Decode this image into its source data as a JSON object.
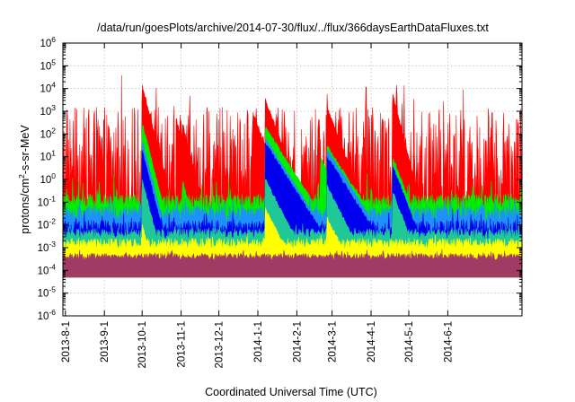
{
  "chart_data": {
    "type": "area",
    "title": "/data/run/goesPlots/archive/2014-07-30/flux/../flux/366daysEarthDataFluxes.txt",
    "xlabel": "Coordinated Universal Time (UTC)",
    "ylabel": {
      "base": "protons/cm",
      "sup": "2",
      "rest": "-s-sr-MeV"
    },
    "x_range": [
      "2013-07-30",
      "2014-07-30"
    ],
    "x_ticks": [
      "2013-8-1",
      "2013-9-1",
      "2013-10-1",
      "2013-11-1",
      "2013-12-1",
      "2014-1-1",
      "2014-2-1",
      "2014-3-1",
      "2014-4-1",
      "2014-5-1",
      "2014-6-1"
    ],
    "y_scale": "log",
    "ylim": [
      1e-06,
      1000000.0
    ],
    "y_ticks": [
      {
        "base": "10",
        "exp": "-6"
      },
      {
        "base": "10",
        "exp": "-5"
      },
      {
        "base": "10",
        "exp": "-4"
      },
      {
        "base": "10",
        "exp": "-3"
      },
      {
        "base": "10",
        "exp": "-2"
      },
      {
        "base": "10",
        "exp": "-1"
      },
      {
        "base": "10",
        "exp": "0"
      },
      {
        "base": "10",
        "exp": "1"
      },
      {
        "base": "10",
        "exp": "2"
      },
      {
        "base": "10",
        "exp": "3"
      },
      {
        "base": "10",
        "exp": "4"
      },
      {
        "base": "10",
        "exp": "5"
      },
      {
        "base": "10",
        "exp": "6"
      }
    ],
    "grid": true,
    "legend": "none",
    "series": [
      {
        "color": "#ff0000",
        "baseline": 3,
        "noise": 0.9,
        "max_decades": 0.9,
        "events": [
          [
            "2013-10-01",
            14000,
            2
          ],
          [
            "2013-10-28",
            500,
            2
          ],
          [
            "2013-11-02",
            300,
            2
          ],
          [
            "2013-12-28",
            800,
            3
          ],
          [
            "2014-01-07",
            3000,
            3
          ],
          [
            "2014-02-25",
            1500,
            3
          ],
          [
            "2014-04-18",
            6000,
            2
          ]
        ]
      },
      {
        "color": "#00ee00",
        "baseline": 0.1,
        "noise": 0.12,
        "max_decades": 0.5,
        "events": [
          [
            "2013-10-01",
            300,
            2
          ],
          [
            "2013-11-02",
            1,
            2
          ],
          [
            "2014-01-07",
            200,
            5
          ],
          [
            "2014-02-20",
            10,
            3
          ],
          [
            "2014-02-25",
            30,
            5
          ],
          [
            "2014-04-18",
            10,
            3
          ],
          [
            "2014-04-25",
            1,
            2
          ]
        ]
      },
      {
        "color": "#1e90ff",
        "baseline": 0.03,
        "noise": 0.12,
        "max_decades": 0.3,
        "events": [
          [
            "2013-10-01",
            50,
            2
          ],
          [
            "2014-01-07",
            60,
            5
          ],
          [
            "2014-02-25",
            20,
            5
          ],
          [
            "2014-04-18",
            5,
            3
          ]
        ]
      },
      {
        "color": "#0000ee",
        "baseline": 0.007,
        "noise": 0.12,
        "max_decades": 0.3,
        "events": [
          [
            "2013-10-01",
            20,
            2
          ],
          [
            "2014-01-07",
            40,
            5
          ],
          [
            "2014-02-25",
            10,
            5
          ],
          [
            "2014-04-18",
            4,
            3
          ]
        ]
      },
      {
        "color": "#20c898",
        "baseline": 0.004,
        "noise": 0.08,
        "max_decades": 0.15,
        "events": [
          [
            "2013-10-01",
            1,
            2
          ],
          [
            "2014-01-07",
            1,
            4
          ],
          [
            "2014-02-25",
            0.5,
            4
          ],
          [
            "2014-04-18",
            0.3,
            3
          ]
        ]
      },
      {
        "color": "#ffff00",
        "baseline": 0.0015,
        "noise": 0.08,
        "max_decades": 0.15,
        "events": [
          [
            "2013-10-01",
            0.01,
            2
          ],
          [
            "2014-01-07",
            0.05,
            4
          ],
          [
            "2014-02-25",
            0.02,
            4
          ]
        ]
      },
      {
        "color": "#a03c64",
        "baseline": 0.0004,
        "noise": 0.05,
        "max_decades": 0.1,
        "events": []
      }
    ],
    "floor": 5e-05
  }
}
